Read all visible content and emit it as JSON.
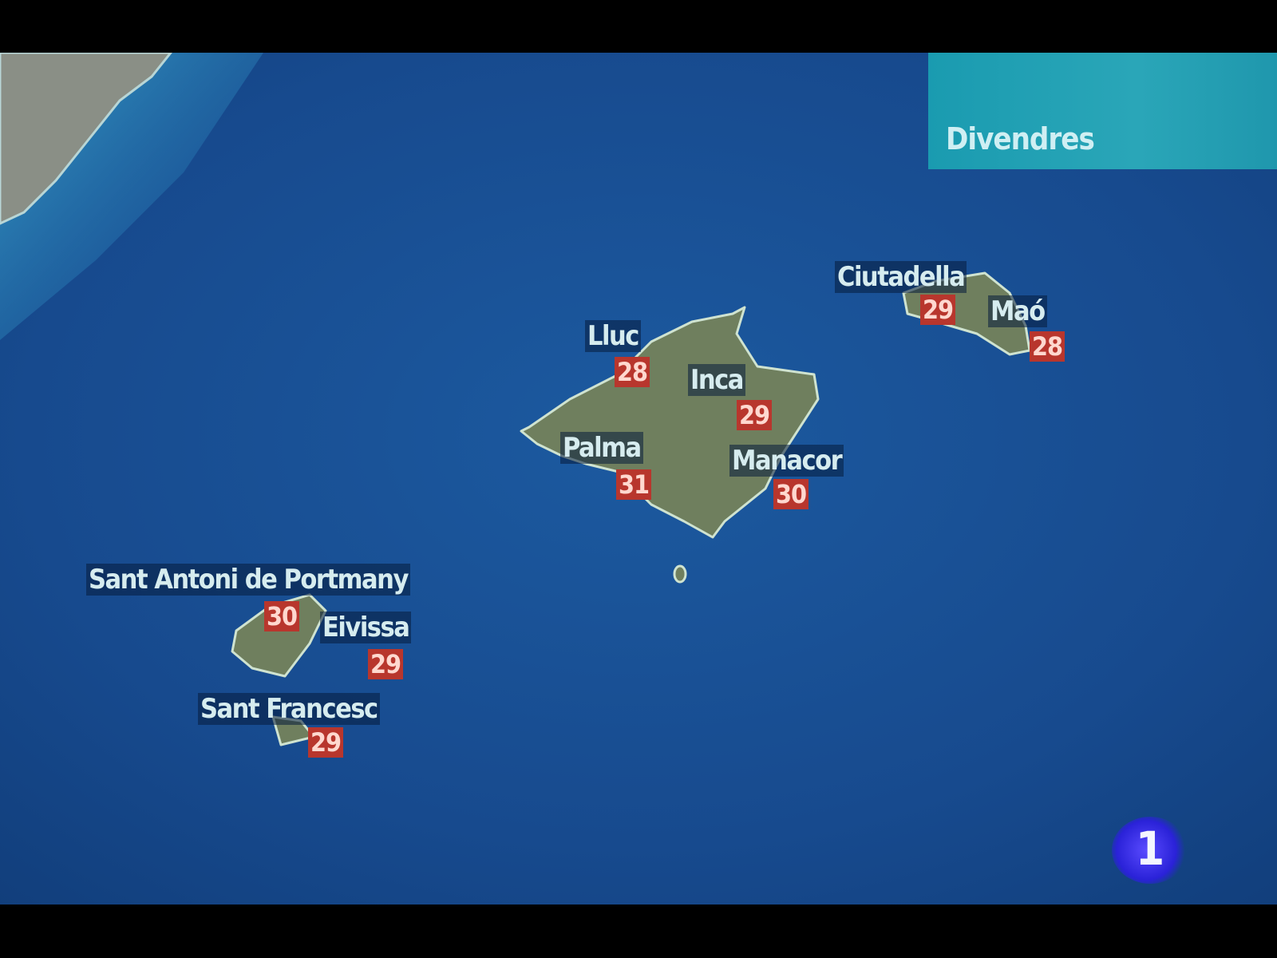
{
  "header": {
    "day": "Divendres"
  },
  "cities": [
    {
      "name": "Ciutadella",
      "temp": "29"
    },
    {
      "name": "Maó",
      "temp": "28"
    },
    {
      "name": "Lluc",
      "temp": "28"
    },
    {
      "name": "Inca",
      "temp": "29"
    },
    {
      "name": "Palma",
      "temp": "31"
    },
    {
      "name": "Manacor",
      "temp": "30"
    },
    {
      "name": "Sant Antoni de Portmany",
      "temp": "30"
    },
    {
      "name": "Eivissa",
      "temp": "29"
    },
    {
      "name": "Sant Francesc",
      "temp": "29"
    }
  ],
  "logo": {
    "text": "1"
  },
  "colors": {
    "sea": "#1a4f95",
    "land": "#6f7f5e",
    "panel": "#22a0b4",
    "temp_box": "#b8362d"
  }
}
